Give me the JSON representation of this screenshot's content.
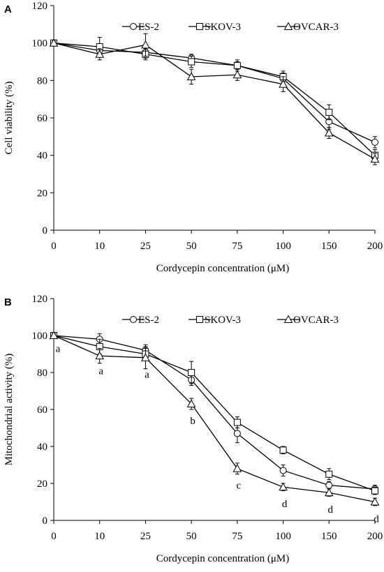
{
  "chart_data": [
    {
      "panel_label": "A",
      "type": "line",
      "xlabel": "Cordycepin concentration (μM)",
      "ylabel": "Cell viability (%)",
      "ylim": [
        0,
        120
      ],
      "y_ticks": [
        "0",
        "20",
        "40",
        "60",
        "80",
        "100",
        "120"
      ],
      "categories": [
        "0",
        "10",
        "25",
        "50",
        "75",
        "100",
        "150",
        "200"
      ],
      "grid": false,
      "legend_position": "top",
      "series": [
        {
          "name": "ES-2",
          "marker": "circle",
          "values": [
            100,
            96,
            95,
            92,
            88,
            81,
            58,
            47
          ],
          "errors": [
            1,
            2,
            3,
            2,
            2,
            3,
            4,
            3
          ]
        },
        {
          "name": "SKOV-3",
          "marker": "square",
          "values": [
            100,
            98,
            94,
            90,
            88,
            82,
            63,
            40
          ],
          "errors": [
            1,
            5,
            3,
            3,
            3,
            3,
            4,
            3
          ]
        },
        {
          "name": "OVCAR-3",
          "marker": "triangle",
          "values": [
            100,
            94,
            99,
            82,
            83,
            78,
            52,
            38
          ],
          "errors": [
            1,
            3,
            6,
            4,
            3,
            4,
            3,
            3
          ]
        }
      ],
      "annotations": []
    },
    {
      "panel_label": "B",
      "type": "line",
      "xlabel": "Cordycepin concentration (μM)",
      "ylabel": "Mitochondrial activity (%)",
      "ylim": [
        0,
        120
      ],
      "y_ticks": [
        "0",
        "20",
        "40",
        "60",
        "80",
        "100",
        "120"
      ],
      "categories": [
        "0",
        "10",
        "25",
        "50",
        "75",
        "100",
        "150",
        "200"
      ],
      "grid": false,
      "legend_position": "top",
      "series": [
        {
          "name": "ES-2",
          "marker": "circle",
          "values": [
            100,
            98,
            92,
            76,
            47,
            27,
            19,
            17
          ],
          "errors": [
            1,
            3,
            3,
            3,
            5,
            3,
            2,
            2
          ]
        },
        {
          "name": "SKOV-3",
          "marker": "square",
          "values": [
            100,
            94,
            90,
            80,
            53,
            38,
            25,
            16
          ],
          "errors": [
            1,
            4,
            3,
            6,
            3,
            2,
            3,
            2
          ]
        },
        {
          "name": "OVCAR-3",
          "marker": "triangle",
          "values": [
            100,
            89,
            88,
            63,
            28,
            18,
            15,
            10
          ],
          "errors": [
            1,
            4,
            6,
            3,
            3,
            2,
            2,
            2
          ]
        }
      ],
      "annotations": [
        {
          "category": "0",
          "text": "a",
          "y": 93
        },
        {
          "category": "10",
          "text": "a",
          "y": 81
        },
        {
          "category": "25",
          "text": "a",
          "y": 79
        },
        {
          "category": "50",
          "text": "b",
          "y": 54
        },
        {
          "category": "75",
          "text": "c",
          "y": 19
        },
        {
          "category": "100",
          "text": "d",
          "y": 9
        },
        {
          "category": "150",
          "text": "d",
          "y": 6
        },
        {
          "category": "200",
          "text": "d",
          "y": 1
        }
      ]
    }
  ]
}
